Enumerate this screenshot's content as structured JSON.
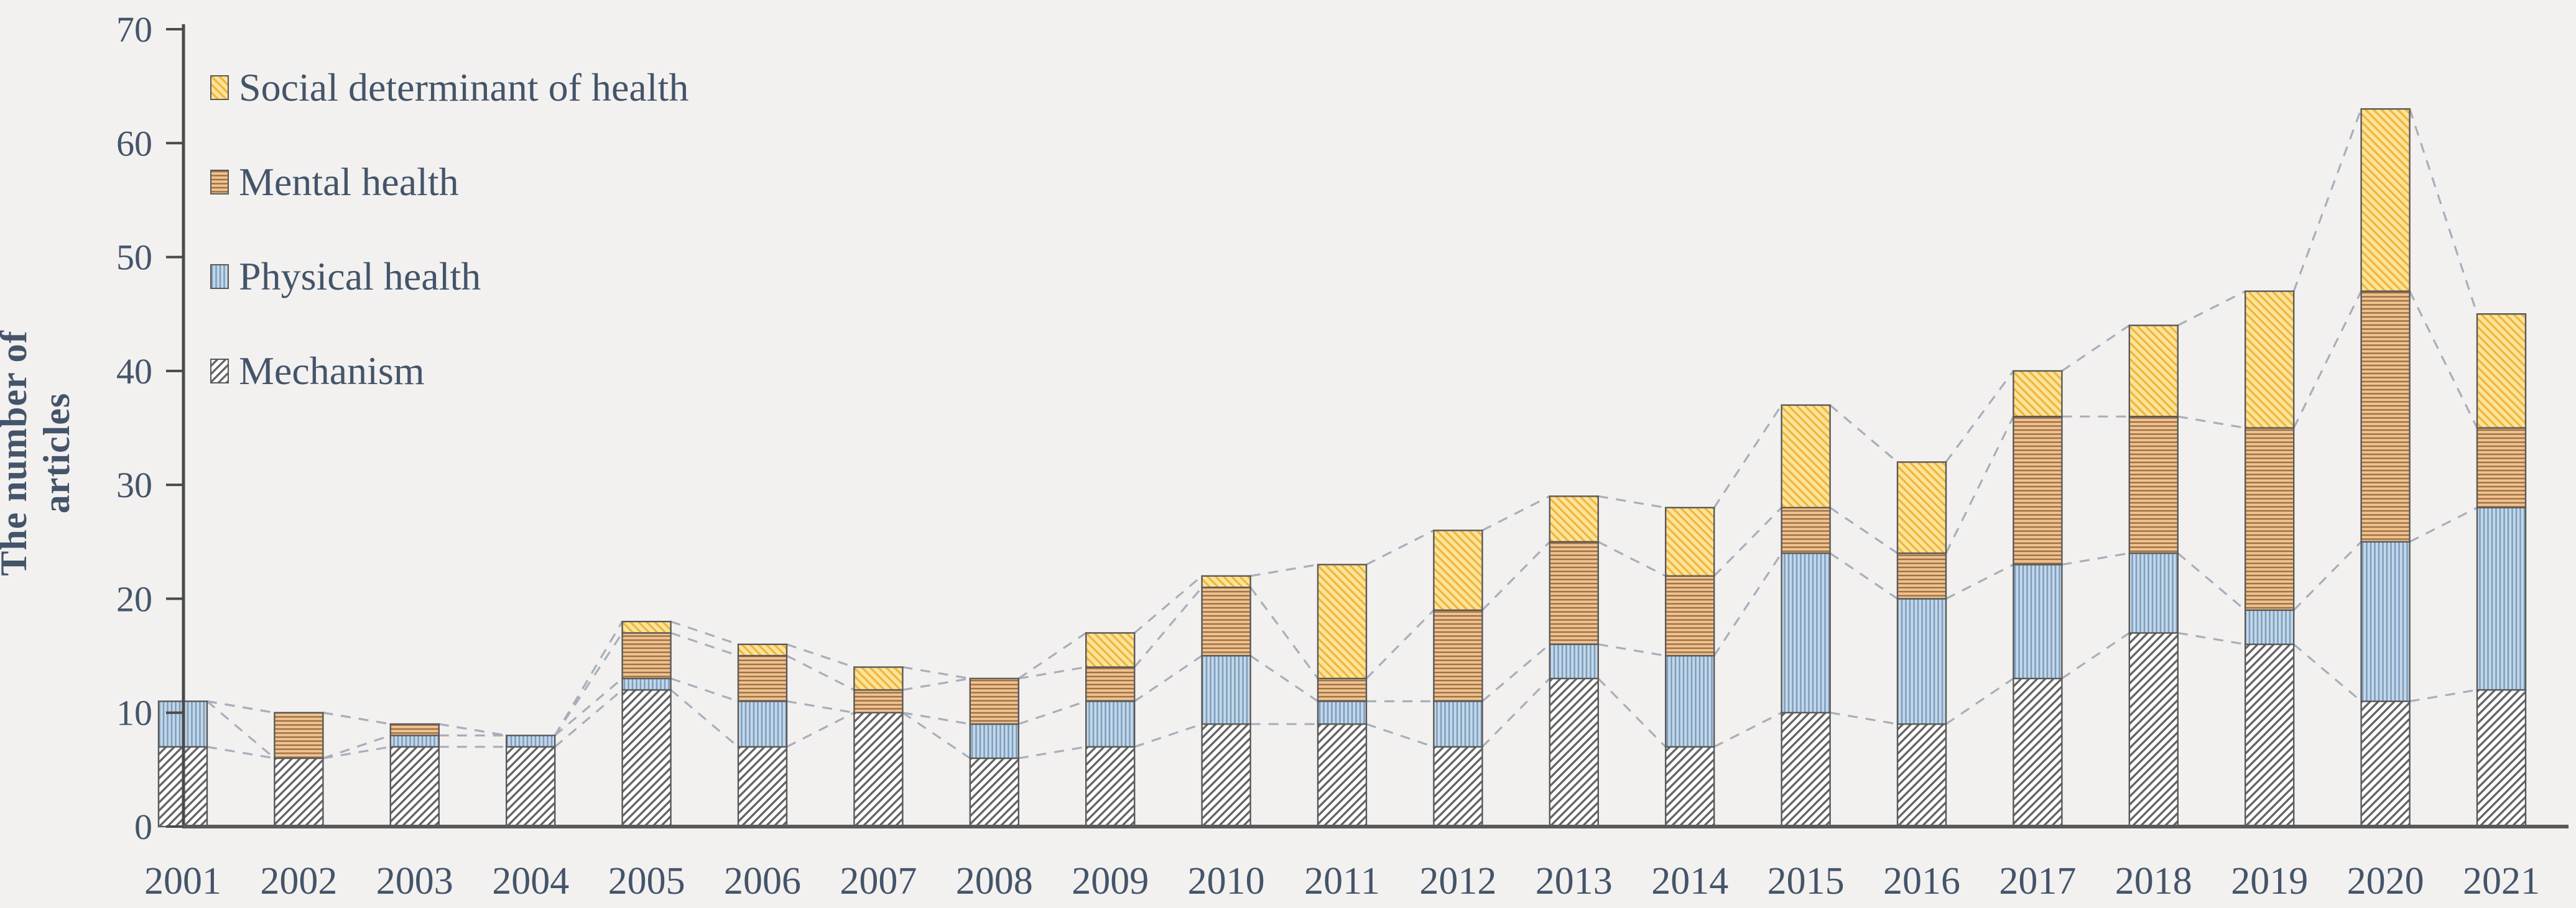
{
  "figure": {
    "background": "#f2f1ef"
  },
  "axis": {
    "ylabel": "The number of articles",
    "y_ticks": [
      "0",
      "10",
      "20",
      "30",
      "40",
      "50",
      "60",
      "70"
    ],
    "ymin": 0,
    "ymax": 70,
    "ystep": 10,
    "text_color": "#44546A",
    "axis_color": "#4a4a4a",
    "baseline_color": "#595959"
  },
  "legend": {
    "items": [
      {
        "label": "Social determinant of health",
        "series": "social"
      },
      {
        "label": "Mental health",
        "series": "mental"
      },
      {
        "label": "Physical health",
        "series": "physical"
      },
      {
        "label": "Mechanism",
        "series": "mechanism"
      }
    ]
  },
  "chart_data": {
    "type": "bar",
    "stacked": true,
    "title": "",
    "xlabel": "",
    "ylabel": "The number of articles",
    "ylim": [
      0,
      70
    ],
    "grid": false,
    "legend_position": "top-left-inside",
    "categories": [
      "2001",
      "2002",
      "2003",
      "2004",
      "2005",
      "2006",
      "2007",
      "2008",
      "2009",
      "2010",
      "2011",
      "2012",
      "2013",
      "2014",
      "2015",
      "2016",
      "2017",
      "2018",
      "2019",
      "2020",
      "2021"
    ],
    "series": [
      {
        "key": "mechanism",
        "name": "Mechanism",
        "values": [
          7,
          6,
          7,
          7,
          12,
          7,
          10,
          6,
          7,
          9,
          9,
          7,
          13,
          7,
          10,
          9,
          13,
          17,
          16,
          11,
          12
        ],
        "fill": "#FEFEFE",
        "hatch": "diagonal",
        "hatch_color": "#666666"
      },
      {
        "key": "physical",
        "name": "Physical health",
        "values": [
          4,
          0,
          1,
          1,
          1,
          4,
          0,
          3,
          4,
          6,
          2,
          4,
          3,
          8,
          14,
          11,
          10,
          7,
          3,
          14,
          16
        ],
        "fill": "#C3D8EA",
        "hatch": "vertical",
        "hatch_color": "#7E9EBD"
      },
      {
        "key": "mental",
        "name": "Mental health",
        "values": [
          0,
          4,
          1,
          0,
          4,
          4,
          2,
          4,
          3,
          6,
          2,
          8,
          9,
          7,
          4,
          4,
          13,
          12,
          16,
          22,
          7
        ],
        "fill": "#F2C38F",
        "hatch": "horizontal",
        "hatch_color": "#9C7248"
      },
      {
        "key": "social",
        "name": "Social determinant of health",
        "values": [
          0,
          0,
          0,
          0,
          1,
          1,
          2,
          0,
          3,
          1,
          10,
          7,
          4,
          6,
          9,
          8,
          4,
          8,
          12,
          16,
          10
        ],
        "fill": "#FBE49B",
        "hatch": "diagonal-back",
        "hatch_color": "#F2B63C"
      }
    ],
    "totals": [
      11,
      10,
      9,
      8,
      18,
      16,
      14,
      13,
      17,
      22,
      23,
      26,
      29,
      28,
      37,
      32,
      40,
      44,
      47,
      63,
      45
    ],
    "connector_lines": {
      "style": "dashed",
      "color": "#A8AEBB"
    },
    "bar_outline": "#595959"
  }
}
